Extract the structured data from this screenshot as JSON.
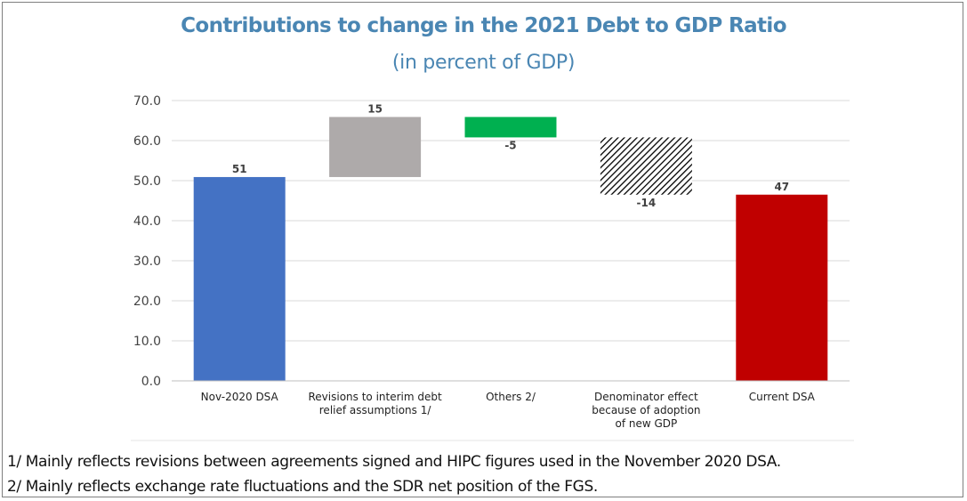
{
  "chart_data": {
    "type": "bar",
    "title": "Contributions to change in the 2021 Debt to GDP Ratio",
    "subtitle": "(in percent of GDP)",
    "ylim": [
      0,
      70
    ],
    "yticks": [
      "0.0",
      "10.0",
      "20.0",
      "30.0",
      "40.0",
      "50.0",
      "60.0",
      "70.0"
    ],
    "grid": true,
    "categories": [
      [
        "Nov-2020 DSA"
      ],
      [
        "Revisions to interim debt",
        "relief assumptions 1/"
      ],
      [
        "Others 2/"
      ],
      [
        "Denominator effect",
        "because of adoption",
        "of new GDP"
      ],
      [
        "Current DSA"
      ]
    ],
    "bars": [
      {
        "base": 0,
        "top": 50.9,
        "label": "51",
        "color": "#4472c4",
        "pattern": "solid"
      },
      {
        "base": 50.9,
        "top": 65.9,
        "label": "15",
        "color": "#aeaaaa",
        "pattern": "solid"
      },
      {
        "base": 65.9,
        "top": 60.8,
        "label": "-5",
        "color": "#00b050",
        "pattern": "solid"
      },
      {
        "base": 60.8,
        "top": 46.5,
        "label": "-14",
        "color": "#000000",
        "pattern": "hatch"
      },
      {
        "base": 0,
        "top": 46.5,
        "label": "47",
        "color": "#c00000",
        "pattern": "solid"
      }
    ]
  },
  "footnotes": [
    "1/ Mainly reflects revisions between agreements signed and HIPC figures used in the November 2020 DSA.",
    "2/ Mainly reflects exchange rate fluctuations and the SDR net position of the FGS."
  ]
}
